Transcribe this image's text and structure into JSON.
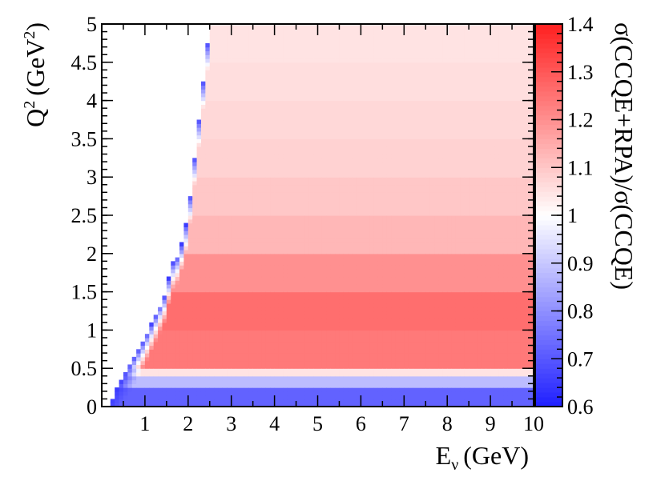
{
  "chart_data": {
    "type": "heatmap",
    "title": "",
    "xlabel": "E",
    "xlabel_subscript": "ν",
    "xlabel_unit": "(GeV)",
    "ylabel_base": "Q",
    "ylabel_sup": "2",
    "ylabel_unit_open": "(GeV",
    "ylabel_unit_sup": "2",
    "ylabel_unit_close": ")",
    "zlabel": "σ(CCQE+RPA)/σ(CCQE)",
    "xlim": [
      0.0,
      10.0
    ],
    "ylim": [
      0.0,
      5.0
    ],
    "zlim": [
      0.6,
      1.4
    ],
    "x_ticks": [
      "1",
      "2",
      "3",
      "4",
      "5",
      "6",
      "7",
      "8",
      "9",
      "10"
    ],
    "y_ticks": [
      "0",
      "0.5",
      "1",
      "1.5",
      "2",
      "2.5",
      "3",
      "3.5",
      "4",
      "4.5",
      "5"
    ],
    "z_ticks": [
      "0.6",
      "0.7",
      "0.8",
      "0.9",
      "1",
      "1.1",
      "1.2",
      "1.3",
      "1.4"
    ],
    "colormap": {
      "low": "#1f1fff",
      "mid": "#ffffff",
      "high": "#ff2020"
    },
    "kinematic_boundary": [
      {
        "E": 0.2,
        "Q2_max": 0.05
      },
      {
        "E": 0.5,
        "Q2_max": 0.4
      },
      {
        "E": 1.0,
        "Q2_max": 0.9
      },
      {
        "E": 1.5,
        "Q2_max": 1.5
      },
      {
        "E": 1.6,
        "Q2_max": 1.85
      },
      {
        "E": 1.8,
        "Q2_max": 2.0
      },
      {
        "E": 2.0,
        "Q2_max": 2.5
      },
      {
        "E": 2.1,
        "Q2_max": 3.0
      },
      {
        "E": 2.2,
        "Q2_max": 3.5
      },
      {
        "E": 2.3,
        "Q2_max": 4.0
      },
      {
        "E": 2.4,
        "Q2_max": 4.5
      },
      {
        "E": 2.5,
        "Q2_max": 5.0
      }
    ],
    "q2_bands": [
      {
        "from": 0.0,
        "to": 0.25,
        "ratio": 0.72
      },
      {
        "from": 0.25,
        "to": 0.38,
        "ratio": 0.88
      },
      {
        "from": 0.38,
        "to": 0.5,
        "ratio": 1.05
      },
      {
        "from": 0.5,
        "to": 1.0,
        "ratio": 1.24
      },
      {
        "from": 1.0,
        "to": 1.5,
        "ratio": 1.26
      },
      {
        "from": 1.5,
        "to": 2.0,
        "ratio": 1.2
      },
      {
        "from": 2.0,
        "to": 2.5,
        "ratio": 1.13
      },
      {
        "from": 2.5,
        "to": 3.0,
        "ratio": 1.1
      },
      {
        "from": 3.0,
        "to": 3.5,
        "ratio": 1.08
      },
      {
        "from": 3.5,
        "to": 4.0,
        "ratio": 1.07
      },
      {
        "from": 4.0,
        "to": 4.5,
        "ratio": 1.06
      },
      {
        "from": 4.5,
        "to": 5.0,
        "ratio": 1.05
      }
    ],
    "edge_ratio": 0.65,
    "grid": false
  }
}
